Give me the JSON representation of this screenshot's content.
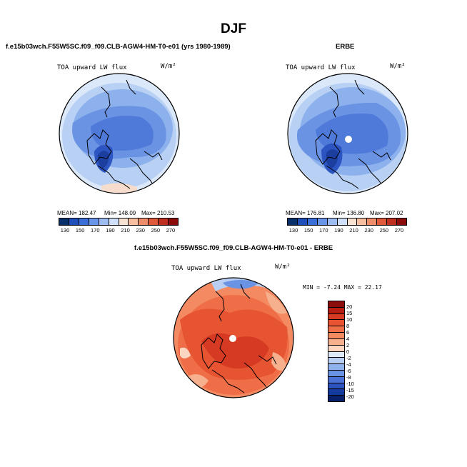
{
  "title": "DJF",
  "panels": {
    "left": {
      "header": "f.e15b03wch.F55W5SC.f09_f09.CLB-AGW4-HM-T0-e01 (yrs 1980-1989)",
      "variable": "TOA upward LW flux",
      "units": "W/m²",
      "mean_label": "MEAN= 182.47",
      "min_label": "Min= 148.09",
      "max_label": "Max= 210.53"
    },
    "right": {
      "header": "ERBE",
      "variable": "TOA upward LW flux",
      "units": "W/m²",
      "mean_label": "MEAN= 176.81",
      "min_label": "Min= 136.80",
      "max_label": "Max= 207.02"
    },
    "diff": {
      "header": "f.e15b03wch.F55W5SC.f09_f09.CLB-AGW4-HM-T0-e01 - ERBE",
      "variable": "TOA upward LW flux",
      "units": "W/m²",
      "minmax_label": "MIN =   -7.24 MAX =   22.17"
    }
  },
  "colorbar_main": {
    "labels": [
      "130",
      "150",
      "170",
      "190",
      "210",
      "230",
      "250",
      "270"
    ],
    "colors": [
      "#08306b",
      "#1f4fb8",
      "#3a6fd8",
      "#6996e8",
      "#9dbdf2",
      "#cfe0f8",
      "#f8e3d3",
      "#f6bfa0",
      "#ee8d6a",
      "#df5a3a",
      "#bf2f20",
      "#8c0b0b"
    ]
  },
  "colorbar_diff": {
    "labels": [
      "20",
      "15",
      "10",
      "8",
      "6",
      "4",
      "2",
      "0",
      "-2",
      "-4",
      "-6",
      "-8",
      "-10",
      "-15",
      "-20"
    ],
    "colors": [
      "#8c0b0b",
      "#b81d14",
      "#d63a22",
      "#e65432",
      "#ef6e47",
      "#f38a62",
      "#f7b08e",
      "#fbd6c3",
      "#dde8f8",
      "#b8cff3",
      "#8fb1ec",
      "#6b93e3",
      "#4a72d6",
      "#2d52bd",
      "#153a9e",
      "#08206b"
    ]
  }
}
